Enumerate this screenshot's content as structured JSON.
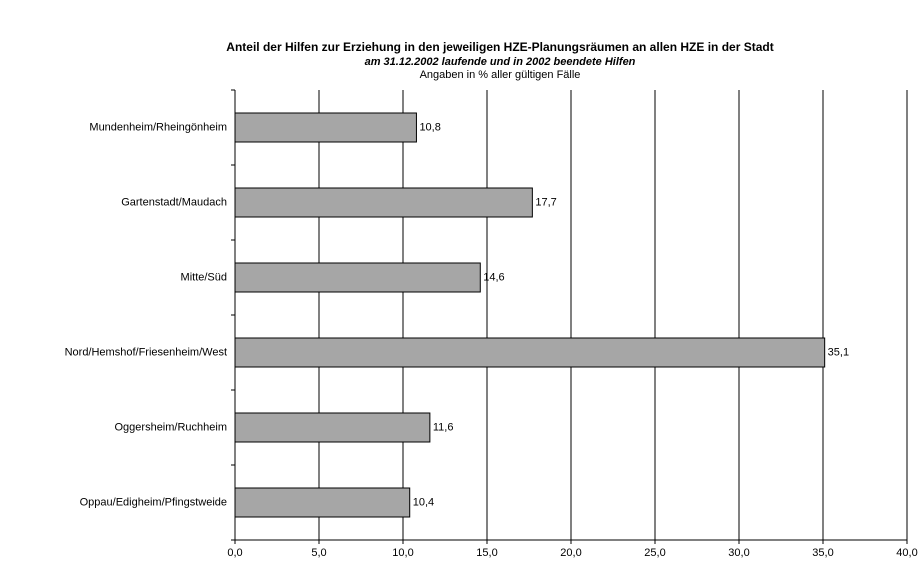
{
  "chart_data": {
    "type": "barh",
    "title": "Anteil der Hilfen zur Erziehung in den jeweiligen HZE-Planungsräumen an allen HZE in der Stadt",
    "subtitle": "am 31.12.2002 laufende und in 2002 beendete Hilfen",
    "note": "Angaben in % aller gültigen Fälle",
    "categories": [
      "Mundenheim/Rheingönheim",
      "Gartenstadt/Maudach",
      "Mitte/Süd",
      "Nord/Hemshof/Friesenheim/West",
      "Oggersheim/Ruchheim",
      "Oppau/Edigheim/Pfingstweide"
    ],
    "values": [
      10.8,
      17.7,
      14.6,
      35.1,
      11.6,
      10.4
    ],
    "value_labels": [
      "10,8",
      "17,7",
      "14,6",
      "35,1",
      "11,6",
      "10,4"
    ],
    "color": "#a6a6a6",
    "xlim": [
      0,
      40
    ],
    "xticks": [
      {
        "value": 0,
        "label": "0,0"
      },
      {
        "value": 5,
        "label": "5,0"
      },
      {
        "value": 10,
        "label": "10,0"
      },
      {
        "value": 15,
        "label": "15,0"
      },
      {
        "value": 20,
        "label": "20,0"
      },
      {
        "value": 25,
        "label": "25,0"
      },
      {
        "value": 30,
        "label": "30,0"
      },
      {
        "value": 35,
        "label": "35,0"
      },
      {
        "value": 40,
        "label": "40,0"
      }
    ],
    "grid": true
  }
}
